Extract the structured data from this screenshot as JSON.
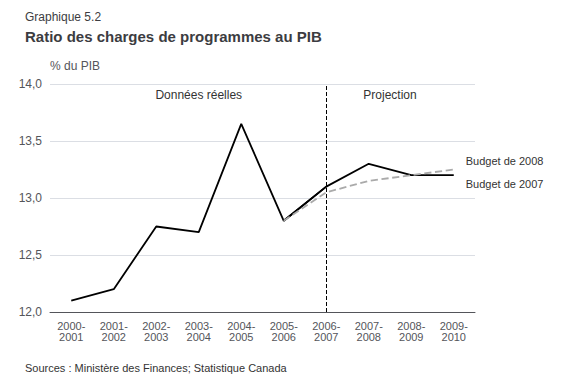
{
  "chart_data": {
    "type": "line",
    "title": "Ratio des charges de programmes au PIB",
    "subtitle": "Graphique 5.2",
    "source": "Sources : Ministère des Finances; Statistique Canada",
    "ylabel": "% du PIB",
    "categories": [
      "2000-\n2001",
      "2001-\n2002",
      "2002-\n2003",
      "2003-\n2004",
      "2004-\n2005",
      "2005-\n2006",
      "2006-\n2007",
      "2007-\n2008",
      "2008-\n2009",
      "2009-\n2010"
    ],
    "series": [
      {
        "color": "#000000",
        "line_style": "solid",
        "values": [
          12.1,
          12.2,
          12.75,
          12.7,
          13.65,
          12.8,
          13.1,
          null,
          null,
          null
        ]
      },
      {
        "name": "Budget de 2007",
        "color": "#000000",
        "line_style": "solid",
        "values": [
          null,
          null,
          null,
          null,
          null,
          12.8,
          13.1,
          13.3,
          13.2,
          13.2
        ]
      },
      {
        "name": "Budget de 2008",
        "color": "#aaaaaa",
        "line_style": "dashed",
        "values": [
          null,
          null,
          null,
          null,
          null,
          12.8,
          13.05,
          13.15,
          13.2,
          13.25
        ]
      }
    ],
    "annotations": [
      "Données réelles",
      "Projection"
    ],
    "vline": "2006-\n2007",
    "ylim": [
      12.0,
      14.0
    ],
    "yticks": [
      {
        "value": 12.0,
        "label": "12,0"
      },
      {
        "value": 12.5,
        "label": "12,5"
      },
      {
        "value": 13.0,
        "label": "13,0"
      },
      {
        "value": 13.5,
        "label": "13,5"
      },
      {
        "value": 14.0,
        "label": "14,0"
      }
    ],
    "grid": true
  }
}
